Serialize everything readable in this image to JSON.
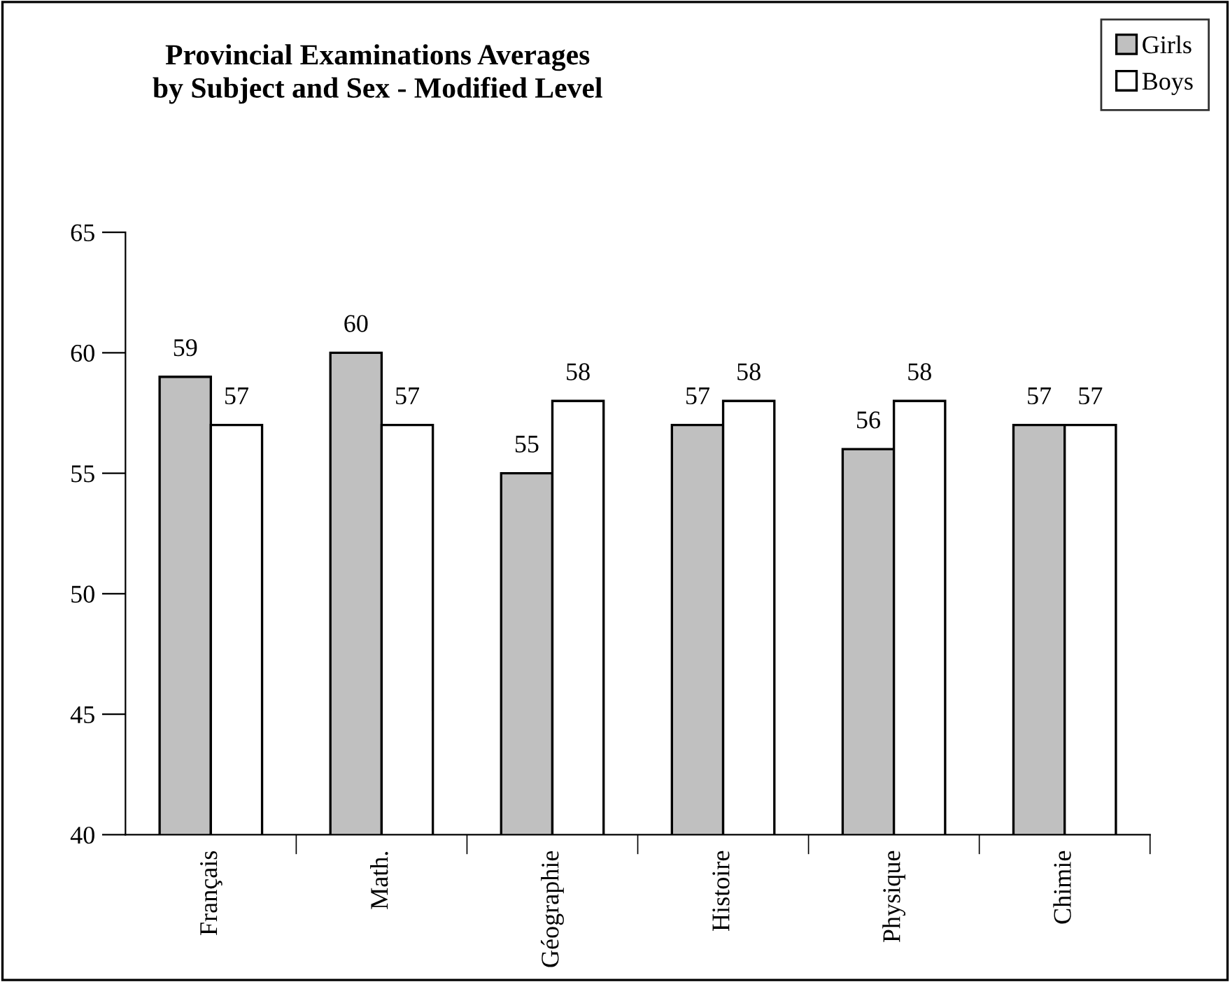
{
  "chart_data": {
    "type": "bar",
    "title": "Provincial Examinations Averages\nby Subject and Sex - Modified Level",
    "categories": [
      "Français",
      "Math.",
      "Géographie",
      "Histoire",
      "Physique",
      "Chimie"
    ],
    "series": [
      {
        "name": "Girls",
        "color": "#c0c0c0",
        "values": [
          59,
          60,
          55,
          57,
          56,
          57
        ]
      },
      {
        "name": "Boys",
        "color": "#ffffff",
        "values": [
          57,
          57,
          58,
          58,
          58,
          57
        ]
      }
    ],
    "ylim": [
      40,
      65
    ],
    "yticks": [
      40,
      45,
      50,
      55,
      60,
      65
    ],
    "grid": false,
    "legend": "top right",
    "data_labels": true
  }
}
